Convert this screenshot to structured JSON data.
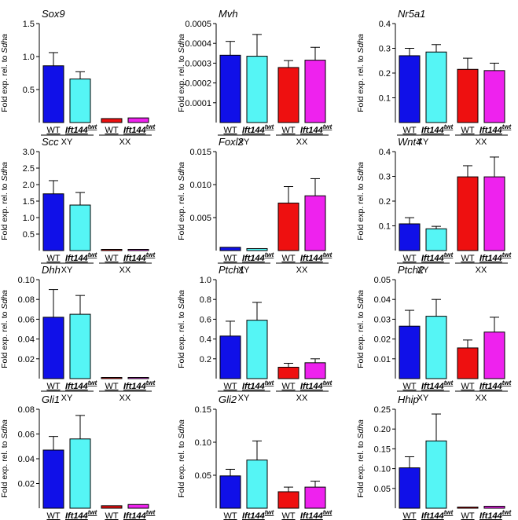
{
  "colors": {
    "WT_XY": "#1010e8",
    "mut_XY": "#55f5f5",
    "WT_XX": "#ee1010",
    "mut_XX": "#ee22ee"
  },
  "xlabels": {
    "wt": "WT",
    "mut": "Ift144",
    "mut_sup": "twt",
    "xy": "XY",
    "xx": "XX"
  },
  "chart_data": [
    {
      "type": "bar",
      "title": "Sox9",
      "ylabel_pre": "Fold exp. rel. to ",
      "ylabel_gene": "Sdha",
      "ylim": [
        0,
        1.5
      ],
      "yticks": [
        "0.5",
        "1.0",
        "1.5"
      ],
      "tickvals": [
        0.5,
        1.0,
        1.5
      ],
      "categories": [
        "WT XY",
        "Ift144twt XY",
        "WT XX",
        "Ift144twt XX"
      ],
      "values": [
        0.86,
        0.66,
        0.06,
        0.07
      ],
      "errors": [
        0.2,
        0.11,
        0.01,
        0.02
      ]
    },
    {
      "type": "bar",
      "title": "Mvh",
      "ylabel_pre": "Fold exp. rel. to ",
      "ylabel_gene": "Sdha",
      "ylim": [
        0,
        0.0005
      ],
      "yticks": [
        "0.0001",
        "0.0002",
        "0.0003",
        "0.0004",
        "0.0005"
      ],
      "tickvals": [
        0.0001,
        0.0002,
        0.0003,
        0.0004,
        0.0005
      ],
      "categories": [
        "WT XY",
        "Ift144twt XY",
        "WT XX",
        "Ift144twt XX"
      ],
      "values": [
        0.00034,
        0.000335,
        0.000278,
        0.000315
      ],
      "errors": [
        7e-05,
        0.00011,
        3.5e-05,
        6.5e-05
      ]
    },
    {
      "type": "bar",
      "title": "Nr5a1",
      "ylabel_pre": "Fold exp. rel. to ",
      "ylabel_gene": "Sdha",
      "ylim": [
        0,
        0.4
      ],
      "yticks": [
        "0.1",
        "0.2",
        "0.3",
        "0.4"
      ],
      "tickvals": [
        0.1,
        0.2,
        0.3,
        0.4
      ],
      "categories": [
        "WT XY",
        "Ift144twt XY",
        "WT XX",
        "Ift144twt XX"
      ],
      "values": [
        0.27,
        0.285,
        0.215,
        0.21
      ],
      "errors": [
        0.03,
        0.03,
        0.045,
        0.03
      ]
    },
    {
      "type": "bar",
      "title": "Scc",
      "ylabel_pre": "Fold exp. rel. to ",
      "ylabel_gene": "Sdha",
      "ylim": [
        0,
        3.0
      ],
      "yticks": [
        "0.5",
        "1.0",
        "1.5",
        "2.0",
        "2.5",
        "3.0"
      ],
      "tickvals": [
        0.5,
        1.0,
        1.5,
        2.0,
        2.5,
        3.0
      ],
      "categories": [
        "WT XY",
        "Ift144twt XY",
        "WT XX",
        "Ift144twt XX"
      ],
      "values": [
        1.72,
        1.38,
        0.01,
        0.02
      ],
      "errors": [
        0.4,
        0.38,
        0.005,
        0.01
      ]
    },
    {
      "type": "bar",
      "title": "Foxl2",
      "ylabel_pre": "Fold exp. rel. to ",
      "ylabel_gene": "Sdha",
      "ylim": [
        0,
        0.015
      ],
      "yticks": [
        "0.005",
        "0.010",
        "0.015"
      ],
      "tickvals": [
        0.005,
        0.01,
        0.015
      ],
      "categories": [
        "WT XY",
        "Ift144twt XY",
        "WT XX",
        "Ift144twt XX"
      ],
      "values": [
        0.0005,
        0.0003,
        0.0072,
        0.0083
      ],
      "errors": [
        0.0002,
        0.0002,
        0.0025,
        0.0026
      ]
    },
    {
      "type": "bar",
      "title": "Wnt4",
      "ylabel_pre": "Fold exp. rel. to ",
      "ylabel_gene": "Sdha",
      "ylim": [
        0,
        0.4
      ],
      "yticks": [
        "0.1",
        "0.2",
        "0.3",
        "0.4"
      ],
      "tickvals": [
        0.1,
        0.2,
        0.3,
        0.4
      ],
      "categories": [
        "WT XY",
        "Ift144twt XY",
        "WT XX",
        "Ift144twt XX"
      ],
      "values": [
        0.108,
        0.088,
        0.298,
        0.298
      ],
      "errors": [
        0.025,
        0.01,
        0.045,
        0.08
      ]
    },
    {
      "type": "bar",
      "title": "Dhh",
      "ylabel_pre": "Fold exp. rel. to ",
      "ylabel_gene": "Sdha",
      "ylim": [
        0,
        0.1
      ],
      "yticks": [
        "0.02",
        "0.04",
        "0.06",
        "0.08",
        "0.10"
      ],
      "tickvals": [
        0.02,
        0.04,
        0.06,
        0.08,
        0.1
      ],
      "categories": [
        "WT XY",
        "Ift144twt XY",
        "WT XX",
        "Ift144twt XX"
      ],
      "values": [
        0.062,
        0.065,
        0.0005,
        0.001
      ],
      "errors": [
        0.028,
        0.019,
        0.0003,
        0.001
      ]
    },
    {
      "type": "bar",
      "title": "Ptch1",
      "ylabel_pre": "Fold exp. rel. to ",
      "ylabel_gene": "Sdha",
      "ylim": [
        0,
        1.0
      ],
      "yticks": [
        "0.2",
        "0.4",
        "0.6",
        "0.8",
        "1.0"
      ],
      "tickvals": [
        0.2,
        0.4,
        0.6,
        0.8,
        1.0
      ],
      "categories": [
        "WT XY",
        "Ift144twt XY",
        "WT XX",
        "Ift144twt XX"
      ],
      "values": [
        0.43,
        0.59,
        0.115,
        0.16
      ],
      "errors": [
        0.15,
        0.18,
        0.04,
        0.04
      ]
    },
    {
      "type": "bar",
      "title": "Ptch2",
      "ylabel_pre": "Fold exp. rel. to ",
      "ylabel_gene": "Sdha",
      "ylim": [
        0,
        0.05
      ],
      "yticks": [
        "0.01",
        "0.02",
        "0.03",
        "0.04",
        "0.05"
      ],
      "tickvals": [
        0.01,
        0.02,
        0.03,
        0.04,
        0.05
      ],
      "categories": [
        "WT XY",
        "Ift144twt XY",
        "WT XX",
        "Ift144twt XX"
      ],
      "values": [
        0.0265,
        0.0315,
        0.0155,
        0.0235
      ],
      "errors": [
        0.008,
        0.0085,
        0.004,
        0.0075
      ]
    },
    {
      "type": "bar",
      "title": "Gli1",
      "ylabel_pre": "Fold exp. rel. to ",
      "ylabel_gene": "Sdha",
      "ylim": [
        0,
        0.08
      ],
      "yticks": [
        "0.02",
        "0.04",
        "0.06",
        "0.08"
      ],
      "tickvals": [
        0.02,
        0.04,
        0.06,
        0.08
      ],
      "categories": [
        "WT XY",
        "Ift144twt XY",
        "WT XX",
        "Ift144twt XX"
      ],
      "values": [
        0.047,
        0.056,
        0.002,
        0.003
      ],
      "errors": [
        0.011,
        0.019,
        0.0005,
        0.001
      ]
    },
    {
      "type": "bar",
      "title": "Gli2",
      "ylabel_pre": "Fold exp. rel. to ",
      "ylabel_gene": "Sdha",
      "ylim": [
        0,
        0.15
      ],
      "yticks": [
        "0.05",
        "0.10",
        "0.15"
      ],
      "tickvals": [
        0.05,
        0.1,
        0.15
      ],
      "categories": [
        "WT XY",
        "Ift144twt XY",
        "WT XX",
        "Ift144twt XX"
      ],
      "values": [
        0.049,
        0.073,
        0.025,
        0.032
      ],
      "errors": [
        0.01,
        0.029,
        0.007,
        0.009
      ]
    },
    {
      "type": "bar",
      "title": "Hhip",
      "ylabel_pre": "Fold exp. rel. to ",
      "ylabel_gene": "Sdha",
      "ylim": [
        0,
        0.25
      ],
      "yticks": [
        "0.05",
        "0.10",
        "0.15",
        "0.20",
        "0.25"
      ],
      "tickvals": [
        0.05,
        0.1,
        0.15,
        0.2,
        0.25
      ],
      "categories": [
        "WT XY",
        "Ift144twt XY",
        "WT XX",
        "Ift144twt XX"
      ],
      "values": [
        0.102,
        0.17,
        0.002,
        0.005
      ],
      "errors": [
        0.028,
        0.068,
        0.001,
        0.002
      ]
    }
  ]
}
